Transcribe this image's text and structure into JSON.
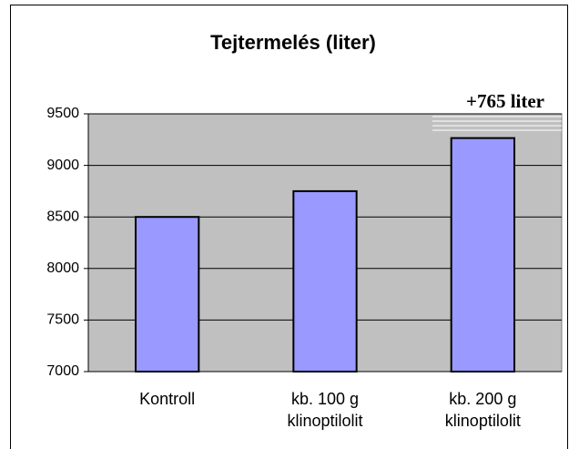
{
  "chart_data": {
    "type": "bar",
    "title": "Tejtermelés (liter)",
    "categories": [
      "Kontroll",
      "kb. 100 g klinoptilolit",
      "kb. 200 g klinoptilolit"
    ],
    "values": [
      8500,
      8750,
      9265
    ],
    "color": "#9999ff",
    "annotation": "+765 liter",
    "ylim": [
      7000,
      9500
    ],
    "yticks": [
      7000,
      7500,
      8000,
      8500,
      9000,
      9500
    ],
    "grid": true
  }
}
